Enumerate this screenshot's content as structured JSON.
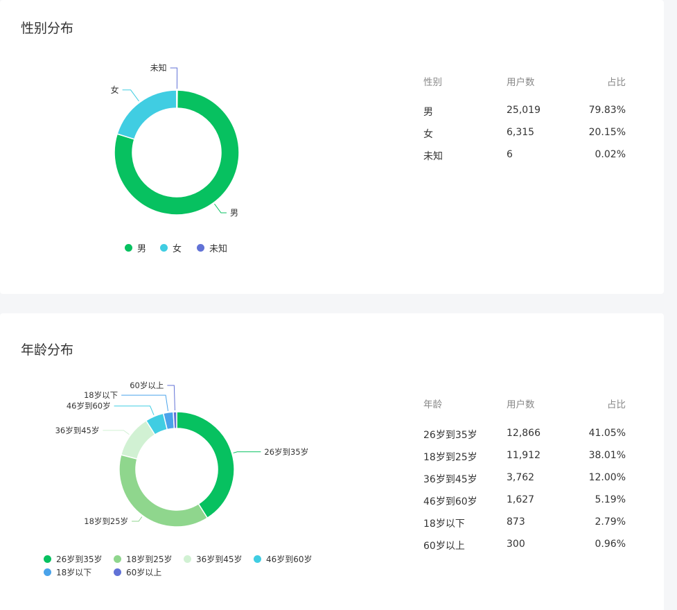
{
  "colors": {
    "green": "#07c160",
    "cyan": "#40cde2",
    "indigo": "#6172d6",
    "light_green": "#8fd68d",
    "pale_green": "#d1f1d3",
    "blue": "#4aa3ea"
  },
  "gender": {
    "title": "性别分布",
    "table_header": {
      "col1": "性别",
      "col2": "用户数",
      "col3": "占比"
    },
    "rows": [
      {
        "label": "男",
        "count": "25,019",
        "pct": "79.83%"
      },
      {
        "label": "女",
        "count": "6,315",
        "pct": "20.15%"
      },
      {
        "label": "未知",
        "count": "6",
        "pct": "0.02%"
      }
    ]
  },
  "age": {
    "title": "年龄分布",
    "table_header": {
      "col1": "年龄",
      "col2": "用户数",
      "col3": "占比"
    },
    "rows": [
      {
        "label": "26岁到35岁",
        "count": "12,866",
        "pct": "41.05%"
      },
      {
        "label": "18岁到25岁",
        "count": "11,912",
        "pct": "38.01%"
      },
      {
        "label": "36岁到45岁",
        "count": "3,762",
        "pct": "12.00%"
      },
      {
        "label": "46岁到60岁",
        "count": "1,627",
        "pct": "5.19%"
      },
      {
        "label": "18岁以下",
        "count": "873",
        "pct": "2.79%"
      },
      {
        "label": "60岁以上",
        "count": "300",
        "pct": "0.96%"
      }
    ]
  },
  "chart_data": [
    {
      "type": "pie",
      "title": "性别分布",
      "categories": [
        "男",
        "女",
        "未知"
      ],
      "values": [
        25019,
        6315,
        6
      ],
      "colors": [
        "#07c160",
        "#40cde2",
        "#6172d6"
      ],
      "legend": "bottom"
    },
    {
      "type": "pie",
      "title": "年龄分布",
      "categories": [
        "26岁到35岁",
        "18岁到25岁",
        "36岁到45岁",
        "46岁到60岁",
        "18岁以下",
        "60岁以上"
      ],
      "values": [
        12866,
        11912,
        3762,
        1627,
        873,
        300
      ],
      "colors": [
        "#07c160",
        "#8fd68d",
        "#d1f1d3",
        "#40cde2",
        "#4aa3ea",
        "#6172d6"
      ],
      "legend": "bottom"
    }
  ]
}
